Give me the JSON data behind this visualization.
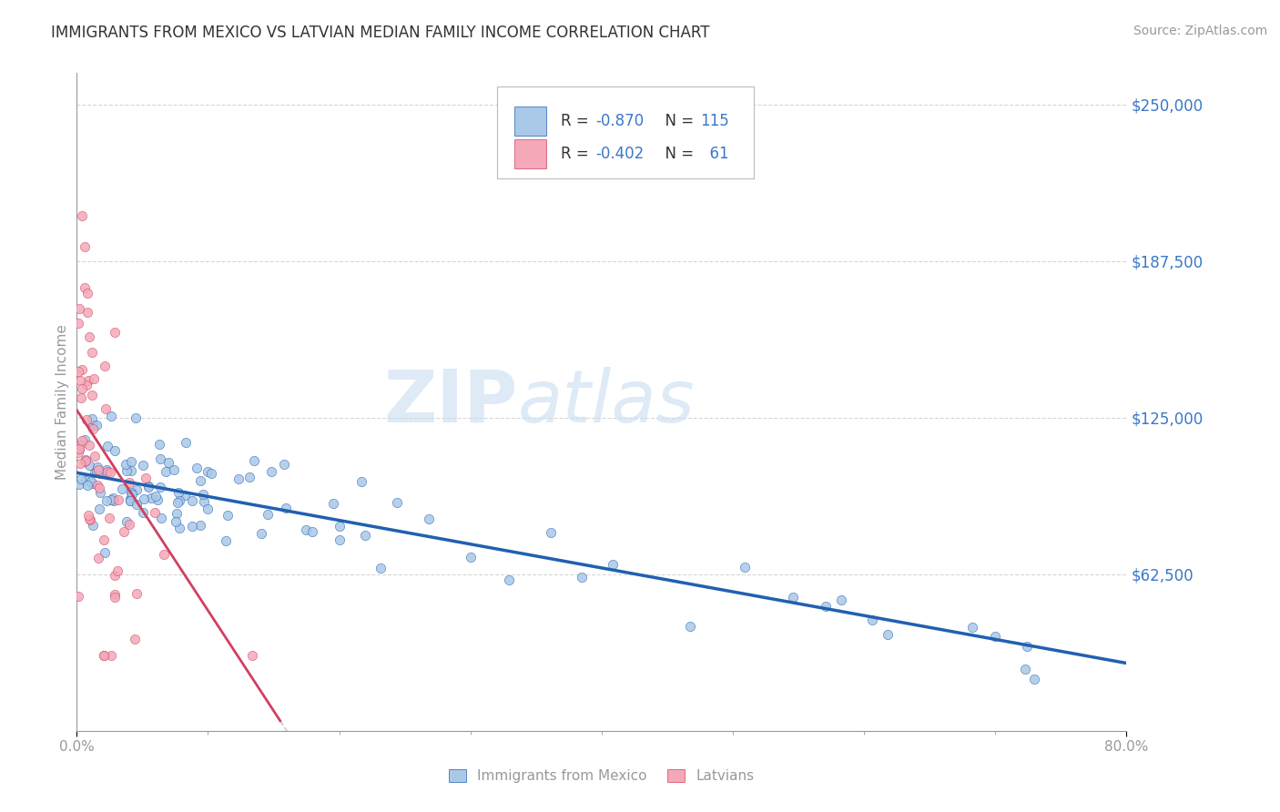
{
  "title": "IMMIGRANTS FROM MEXICO VS LATVIAN MEDIAN FAMILY INCOME CORRELATION CHART",
  "source": "Source: ZipAtlas.com",
  "ylabel": "Median Family Income",
  "xlim": [
    0.0,
    0.8
  ],
  "ylim": [
    0,
    262500
  ],
  "yticks": [
    0,
    62500,
    125000,
    187500,
    250000
  ],
  "ytick_labels": [
    "",
    "$62,500",
    "$125,000",
    "$187,500",
    "$250,000"
  ],
  "series1_color": "#aac8e8",
  "series2_color": "#f4a8b8",
  "trendline1_color": "#2060b0",
  "trendline2_color": "#d04060",
  "trendline2_dash_color": "#c8c8d8",
  "grid_color": "#cccccc",
  "axis_color": "#999999",
  "title_color": "#333333",
  "label_color": "#3a78c9",
  "dark_label_color": "#333333",
  "watermark_color": "#c8ddf0",
  "background_color": "#ffffff",
  "legend_r1": "-0.870",
  "legend_n1": "115",
  "legend_r2": "-0.402",
  "legend_n2": "61",
  "trendline1_slope": -95000,
  "trendline1_intercept": 103000,
  "trendline2_slope": -800000,
  "trendline2_intercept": 128000,
  "trendline2_solid_end": 0.155,
  "n1": 115,
  "n2": 61
}
